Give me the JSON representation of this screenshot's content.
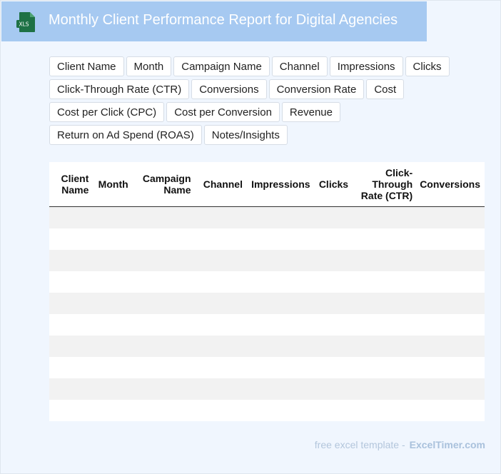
{
  "header": {
    "title": "Monthly Client Performance Report for Digital Agencies",
    "icon": "xls-file-icon",
    "icon_label": "XLS",
    "bg_color": "#a6c9f1",
    "icon_color": "#1e7145"
  },
  "chips": [
    "Client Name",
    "Month",
    "Campaign Name",
    "Channel",
    "Impressions",
    "Clicks",
    "Click-Through Rate (CTR)",
    "Conversions",
    "Conversion Rate",
    "Cost",
    "Cost per Click (CPC)",
    "Cost per Conversion",
    "Revenue",
    "Return on Ad Spend (ROAS)",
    "Notes/Insights"
  ],
  "table": {
    "headers": [
      "Client Name",
      "Month",
      "Campaign Name",
      "Channel",
      "Impressions",
      "Clicks",
      "Click-Through Rate (CTR)",
      "Conversions"
    ],
    "empty_rows": 10
  },
  "footer": {
    "text": "free excel template -",
    "brand": "ExcelTimer.com"
  }
}
